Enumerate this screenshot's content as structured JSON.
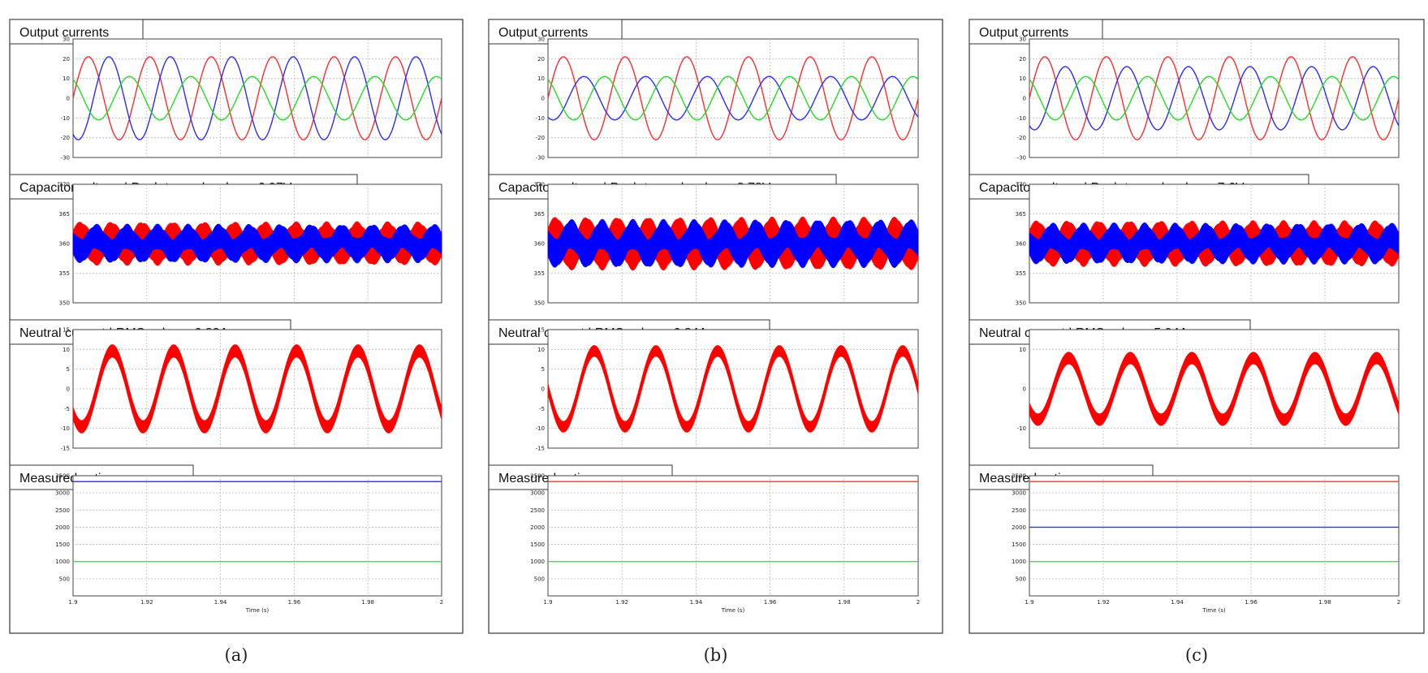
{
  "chart_data": [
    {
      "type": "line",
      "figure_label": "(a)",
      "xlabel": "Time (s)",
      "xlim": [
        1.9,
        2.0
      ],
      "x_ticks": [
        "1.9",
        "1.92",
        "1.94",
        "1.96",
        "1.98",
        "2"
      ],
      "grid": true,
      "panels": [
        {
          "title": "Output currents",
          "ylim": [
            -30,
            30
          ],
          "y_ticks": [
            "30",
            "20",
            "10",
            "0",
            "-10",
            "-20",
            "-30"
          ],
          "series": [
            {
              "color": "#ff2b2b",
              "kind": "sine",
              "amplitude": 21,
              "offset": 0,
              "phase_deg": 0
            },
            {
              "color": "#2b2bff",
              "kind": "sine",
              "amplitude": 21,
              "offset": 0,
              "phase_deg": -120
            },
            {
              "color": "#22dd22",
              "kind": "sine",
              "amplitude": 11,
              "offset": 0,
              "phase_deg": 120
            }
          ]
        },
        {
          "title": "Capacitor voltage | Peak-to-peak value = 6.97V",
          "ylim": [
            350,
            370
          ],
          "y_ticks": [
            "370",
            "365",
            "360",
            "355",
            "350"
          ],
          "series": [
            {
              "color": "#ff0000",
              "kind": "band",
              "center": 360,
              "ripple_amplitude": 1.2,
              "band_halfwidth": 2.2,
              "phase_deg": 0
            },
            {
              "color": "#0000ff",
              "kind": "band",
              "center": 360,
              "ripple_amplitude": 1.2,
              "band_halfwidth": 1.8,
              "phase_deg": 180
            }
          ]
        },
        {
          "title": "Neutral current | RMS value = 6.82A",
          "ylim": [
            -15,
            15
          ],
          "y_ticks": [
            "15",
            "10",
            "5",
            "0",
            "-5",
            "-10",
            "-15"
          ],
          "series": [
            {
              "color": "#ff0000",
              "kind": "thick_sine",
              "amplitude": 9.6,
              "offset": 0,
              "phase_deg": 220,
              "thickness": 3.2
            }
          ]
        },
        {
          "title": "Measured active power",
          "ylim": [
            0,
            3500
          ],
          "y_ticks": [
            "3500",
            "3000",
            "2500",
            "2000",
            "1500",
            "1000",
            "500"
          ],
          "series": [
            {
              "color": "#ff3333",
              "kind": "const",
              "value": 3330
            },
            {
              "color": "#3333ff",
              "kind": "const",
              "value": 3330
            },
            {
              "color": "#33dd33",
              "kind": "const",
              "value": 1000
            }
          ]
        }
      ]
    },
    {
      "type": "line",
      "figure_label": "(b)",
      "xlabel": "Time (s)",
      "xlim": [
        1.9,
        2.0
      ],
      "x_ticks": [
        "1.9",
        "1.92",
        "1.94",
        "1.96",
        "1.98",
        "2"
      ],
      "grid": true,
      "panels": [
        {
          "title": "Output currents",
          "ylim": [
            -30,
            30
          ],
          "y_ticks": [
            "30",
            "20",
            "10",
            "0",
            "-10",
            "-20",
            "-30"
          ],
          "series": [
            {
              "color": "#ff2b2b",
              "kind": "sine",
              "amplitude": 21,
              "offset": 0,
              "phase_deg": 0
            },
            {
              "color": "#2b2bff",
              "kind": "sine",
              "amplitude": 11,
              "offset": 0,
              "phase_deg": -120
            },
            {
              "color": "#22dd22",
              "kind": "sine",
              "amplitude": 11,
              "offset": 0,
              "phase_deg": 120
            }
          ]
        },
        {
          "title": "Capacitor voltage | Peak-to-peak value = 8.78V",
          "ylim": [
            350,
            370
          ],
          "y_ticks": [
            "370",
            "365",
            "360",
            "355",
            "350"
          ],
          "series": [
            {
              "color": "#ff0000",
              "kind": "band",
              "center": 360,
              "ripple_amplitude": 1.6,
              "band_halfwidth": 2.6,
              "phase_deg": 0
            },
            {
              "color": "#0000ff",
              "kind": "band",
              "center": 360,
              "ripple_amplitude": 1.6,
              "band_halfwidth": 2.2,
              "phase_deg": 180
            }
          ]
        },
        {
          "title": "Neutral current | RMS value = 6.84A",
          "ylim": [
            -15,
            15
          ],
          "y_ticks": [
            "15",
            "10",
            "5",
            "0",
            "-5",
            "-10",
            "-15"
          ],
          "series": [
            {
              "color": "#ff0000",
              "kind": "thick_sine",
              "amplitude": 9.6,
              "offset": 0,
              "phase_deg": 180,
              "thickness": 2.8
            }
          ]
        },
        {
          "title": "Measured active power",
          "ylim": [
            0,
            3500
          ],
          "y_ticks": [
            "3500",
            "3000",
            "2500",
            "2000",
            "1500",
            "1000",
            "500"
          ],
          "series": [
            {
              "color": "#ff3333",
              "kind": "const",
              "value": 3330
            },
            {
              "color": "#33dd33",
              "kind": "const",
              "value": 1000
            }
          ]
        }
      ]
    },
    {
      "type": "line",
      "figure_label": "(c)",
      "xlabel": "Time (s)",
      "xlim": [
        1.9,
        2.0
      ],
      "x_ticks": [
        "1.9",
        "1.92",
        "1.94",
        "1.96",
        "1.98",
        "2"
      ],
      "grid": true,
      "panels": [
        {
          "title": "Output currents",
          "ylim": [
            -30,
            30
          ],
          "y_ticks": [
            "30",
            "20",
            "10",
            "0",
            "-10",
            "-20",
            "-30"
          ],
          "series": [
            {
              "color": "#ff2b2b",
              "kind": "sine",
              "amplitude": 21,
              "offset": 0,
              "phase_deg": 0
            },
            {
              "color": "#2b2bff",
              "kind": "sine",
              "amplitude": 16,
              "offset": 0,
              "phase_deg": -120
            },
            {
              "color": "#22dd22",
              "kind": "sine",
              "amplitude": 11,
              "offset": 0,
              "phase_deg": 120
            }
          ]
        },
        {
          "title": "Capacitor voltage | Peak-to-peak value = 7.6V",
          "ylim": [
            350,
            370
          ],
          "y_ticks": [
            "370",
            "365",
            "360",
            "355",
            "350"
          ],
          "series": [
            {
              "color": "#ff0000",
              "kind": "band",
              "center": 360,
              "ripple_amplitude": 1.3,
              "band_halfwidth": 2.3,
              "phase_deg": 0
            },
            {
              "color": "#0000ff",
              "kind": "band",
              "center": 360,
              "ripple_amplitude": 1.3,
              "band_halfwidth": 1.9,
              "phase_deg": 180
            }
          ]
        },
        {
          "title": "Neutral current | RMS value = 5.94A",
          "ylim": [
            -15,
            15
          ],
          "y_ticks": [
            "10",
            "0",
            "-10"
          ],
          "series": [
            {
              "color": "#ff0000",
              "kind": "thick_sine",
              "amplitude": 7.8,
              "offset": 0,
              "phase_deg": 220,
              "thickness": 3.0
            }
          ]
        },
        {
          "title": "Measured active power",
          "ylim": [
            0,
            3500
          ],
          "y_ticks": [
            "3500",
            "3000",
            "2500",
            "2000",
            "1500",
            "1000",
            "500"
          ],
          "series": [
            {
              "color": "#ff3333",
              "kind": "const",
              "value": 3330
            },
            {
              "color": "#3333ff",
              "kind": "const",
              "value": 2000
            },
            {
              "color": "#33dd33",
              "kind": "const",
              "value": 1000
            }
          ]
        }
      ]
    }
  ]
}
